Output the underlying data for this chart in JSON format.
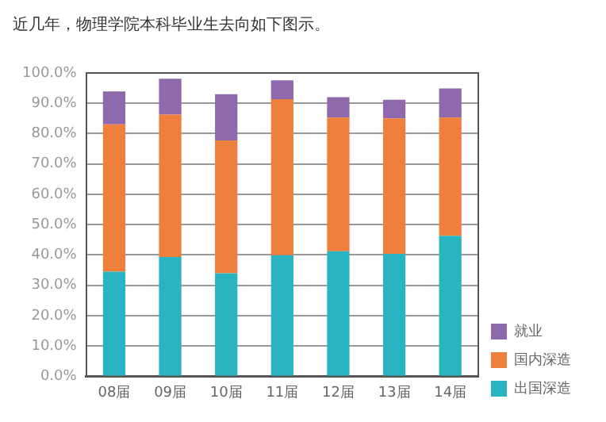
{
  "chart_data": {
    "type": "bar",
    "title": "近几年，物理学院本科毕业生去向如下图示。",
    "categories": [
      "08届",
      "09届",
      "10届",
      "11届",
      "12届",
      "13届",
      "14届"
    ],
    "series": [
      {
        "name": "出国深造",
        "color": "#2ab3c0",
        "values": [
          34.5,
          39.3,
          34.0,
          39.9,
          41.2,
          40.4,
          46.3
        ]
      },
      {
        "name": "国内深造",
        "color": "#ef7f3c",
        "values": [
          48.6,
          47.0,
          43.8,
          51.5,
          44.1,
          44.6,
          39.0
        ]
      },
      {
        "name": "就业",
        "color": "#8e6aad",
        "values": [
          10.8,
          11.8,
          15.2,
          6.2,
          6.7,
          6.2,
          9.6
        ]
      }
    ],
    "stacked": true,
    "ylim": [
      0,
      100
    ],
    "yticks": [
      {
        "value": 0,
        "label": "0.0%"
      },
      {
        "value": 10,
        "label": "10.0%"
      },
      {
        "value": 20,
        "label": "20.0%"
      },
      {
        "value": 30,
        "label": "30.0%"
      },
      {
        "value": 40,
        "label": "40.0%"
      },
      {
        "value": 50,
        "label": "50.0%"
      },
      {
        "value": 60,
        "label": "60.0%"
      },
      {
        "value": 70,
        "label": "70.0%"
      },
      {
        "value": 80,
        "label": "80.0%"
      },
      {
        "value": 90,
        "label": "90.0%"
      },
      {
        "value": 100,
        "label": "100.0%"
      }
    ],
    "grid": "y",
    "legend": "bottom right"
  }
}
